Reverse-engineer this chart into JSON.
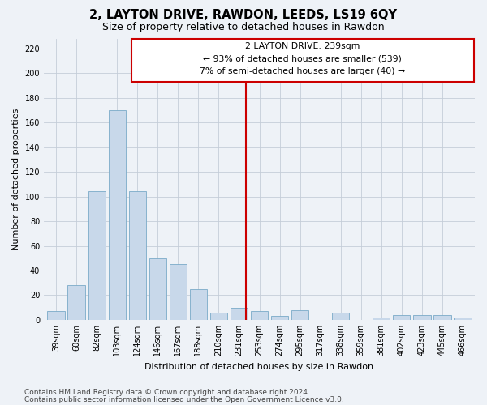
{
  "title": "2, LAYTON DRIVE, RAWDON, LEEDS, LS19 6QY",
  "subtitle": "Size of property relative to detached houses in Rawdon",
  "xlabel": "Distribution of detached houses by size in Rawdon",
  "ylabel": "Number of detached properties",
  "categories": [
    "39sqm",
    "60sqm",
    "82sqm",
    "103sqm",
    "124sqm",
    "146sqm",
    "167sqm",
    "188sqm",
    "210sqm",
    "231sqm",
    "253sqm",
    "274sqm",
    "295sqm",
    "317sqm",
    "338sqm",
    "359sqm",
    "381sqm",
    "402sqm",
    "423sqm",
    "445sqm",
    "466sqm"
  ],
  "values": [
    7,
    28,
    104,
    170,
    104,
    50,
    45,
    25,
    6,
    10,
    7,
    3,
    8,
    0,
    6,
    0,
    2,
    4,
    4,
    4,
    2
  ],
  "bar_color": "#c8d8ea",
  "bar_edge_color": "#7aaac8",
  "property_label": "2 LAYTON DRIVE: 239sqm",
  "annotation_line1": "← 93% of detached houses are smaller (539)",
  "annotation_line2": "7% of semi-detached houses are larger (40) →",
  "vline_color": "#cc0000",
  "vline_x_index": 9.35,
  "ylim": [
    0,
    228
  ],
  "yticks": [
    0,
    20,
    40,
    60,
    80,
    100,
    120,
    140,
    160,
    180,
    200,
    220
  ],
  "footer1": "Contains HM Land Registry data © Crown copyright and database right 2024.",
  "footer2": "Contains public sector information licensed under the Open Government Licence v3.0.",
  "bg_color": "#eef2f7",
  "plot_bg_color": "#eef2f7",
  "title_fontsize": 10.5,
  "subtitle_fontsize": 9,
  "axis_label_fontsize": 8,
  "tick_fontsize": 7,
  "annotation_fontsize": 7.8,
  "footer_fontsize": 6.5
}
